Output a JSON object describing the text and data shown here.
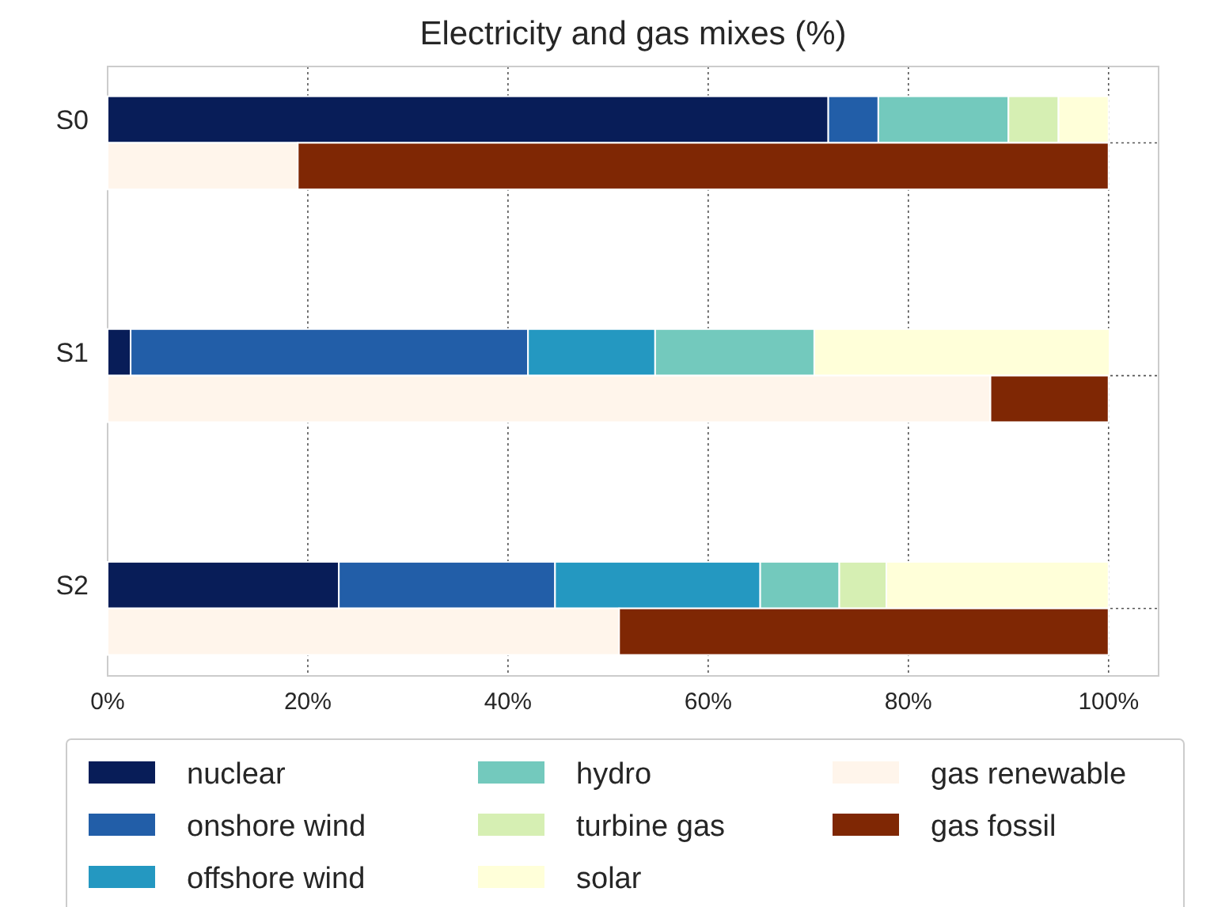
{
  "chart_data": {
    "type": "bar",
    "orientation": "horizontal",
    "stacked": true,
    "title": "Electricity and gas mixes (%)",
    "categories": [
      "S0",
      null,
      null,
      null,
      null,
      "S1",
      null,
      null,
      null,
      null,
      "S2",
      null
    ],
    "series": [
      {
        "name": "nuclear",
        "color": "#081d58",
        "values": [
          72,
          null,
          null,
          null,
          null,
          2.3,
          null,
          null,
          null,
          null,
          23.1,
          null
        ]
      },
      {
        "name": "onshore wind",
        "color": "#225ea8",
        "values": [
          5,
          null,
          null,
          null,
          null,
          39.7,
          null,
          null,
          null,
          null,
          21.6,
          null
        ]
      },
      {
        "name": "offshore wind",
        "color": "#2498c1",
        "values": [
          null,
          null,
          null,
          null,
          null,
          12.7,
          null,
          null,
          null,
          null,
          20.5,
          null
        ]
      },
      {
        "name": "hydro",
        "color": "#73c9bd",
        "values": [
          13,
          null,
          null,
          null,
          null,
          15.9,
          null,
          null,
          null,
          null,
          7.9,
          null
        ]
      },
      {
        "name": "turbine gas",
        "color": "#d6efb3",
        "values": [
          5,
          null,
          null,
          null,
          null,
          null,
          null,
          null,
          null,
          null,
          4.7,
          null
        ]
      },
      {
        "name": "solar",
        "color": "#ffffd9",
        "values": [
          5,
          null,
          null,
          null,
          null,
          29.5,
          null,
          null,
          null,
          null,
          22.2,
          null
        ]
      },
      {
        "name": "gas renewable",
        "color": "#fff5eb",
        "values": [
          null,
          19,
          null,
          null,
          null,
          null,
          88.2,
          null,
          null,
          null,
          null,
          51.1
        ]
      },
      {
        "name": "gas fossil",
        "color": "#7f2704",
        "values": [
          null,
          81,
          null,
          null,
          null,
          null,
          11.8,
          null,
          null,
          null,
          null,
          48.9
        ]
      }
    ],
    "xlim": [
      0,
      105
    ],
    "xticks": [
      {
        "value": 0,
        "label": "0%"
      },
      {
        "value": 20,
        "label": "20%"
      },
      {
        "value": 40,
        "label": "40%"
      },
      {
        "value": 60,
        "label": "60%"
      },
      {
        "value": 80,
        "label": "80%"
      },
      {
        "value": 100,
        "label": "100%"
      }
    ],
    "grid": true,
    "legend": "bottom"
  }
}
